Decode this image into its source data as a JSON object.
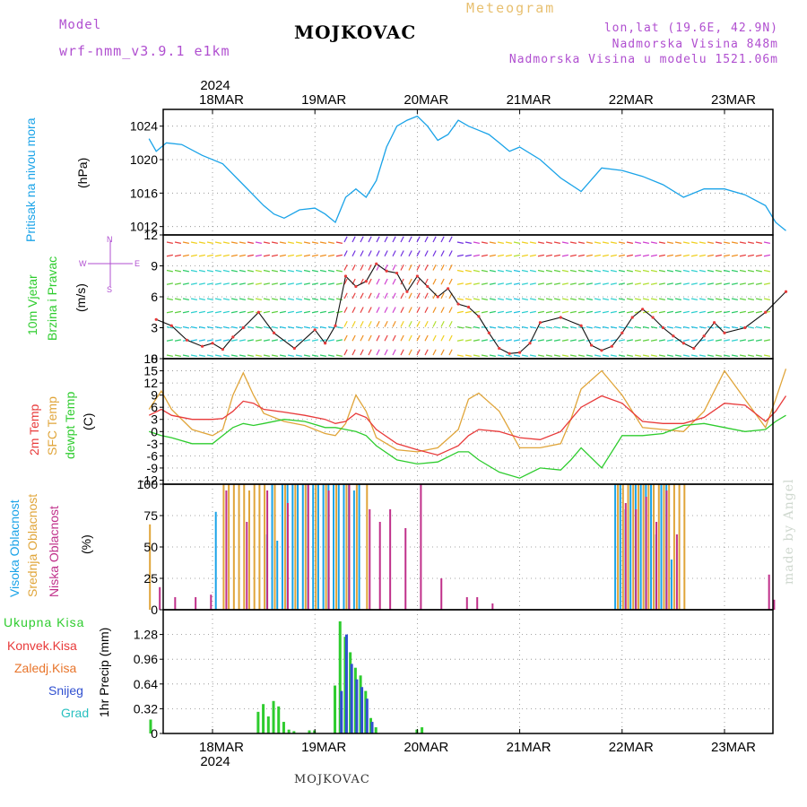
{
  "header": {
    "model_label": "Model",
    "model_name": "wrf-nmm_v3.9.1 e1km",
    "title": "MOJKOVAC",
    "meteogram": "Meteogram",
    "lonlat": "lon,lat (19.6E, 42.9N)",
    "elev": "Nadmorska Visina 848m",
    "elev_model": "Nadmorska Visina u modelu 1521.06m",
    "year_top": "2024"
  },
  "footer": {
    "station": "MOJKOVAC",
    "year_bottom": "2024",
    "watermark": "made by Angel"
  },
  "colors": {
    "pressure": "#1aa3e8",
    "t2m": "#e83a3a",
    "sfc": "#e0a53a",
    "dew": "#2ecc2e",
    "low": "#c0308a",
    "mid": "#e0a53a",
    "high": "#1aa3e8",
    "precip_total": "#2ecc2e",
    "precip_snow": "#3050d0"
  },
  "axis_labels": {
    "pressure": [
      "Pritisak na nivou mora",
      "(hPa)"
    ],
    "wind": [
      "10m Vjetar",
      "Brzina i Pravac",
      "(m/s)"
    ],
    "temp": [
      "2m Temp",
      "SFC Temp",
      "dewpt Temp",
      "(C)"
    ],
    "cloud": [
      "Visoka Oblacnost",
      "Srednja Oblacnost",
      "Niska Oblacnost",
      "(%)"
    ],
    "precip_unit": "1hr Precip (mm)",
    "compass": [
      "N",
      "S",
      "W",
      "E"
    ]
  },
  "precip_legend": [
    "Ukupna Kisa",
    "Konvek.Kisa",
    "Zaledj.Kisa",
    "Snijeg",
    "Grad"
  ],
  "chart_data": [
    {
      "type": "line",
      "title": "",
      "ylabel": "Pritisak na nivou mora (hPa)",
      "x_ticks": [
        "18MAR",
        "19MAR",
        "20MAR",
        "21MAR",
        "22MAR",
        "23MAR"
      ],
      "ylim": [
        1011,
        1026
      ],
      "y_ticks": [
        "1012",
        "1016",
        "1020",
        "1024"
      ],
      "series": [
        {
          "name": "Pritisak na nivou mora",
          "x": [
            -0.62,
            -0.55,
            -0.45,
            -0.3,
            -0.1,
            0.1,
            0.3,
            0.5,
            0.6,
            0.7,
            0.85,
            1.0,
            1.1,
            1.2,
            1.3,
            1.4,
            1.5,
            1.6,
            1.7,
            1.8,
            1.9,
            2.0,
            2.1,
            2.2,
            2.3,
            2.4,
            2.5,
            2.6,
            2.7,
            2.8,
            2.9,
            3.0,
            3.2,
            3.4,
            3.6,
            3.8,
            4.0,
            4.2,
            4.4,
            4.6,
            4.8,
            5.0,
            5.2,
            5.4,
            5.5,
            5.6
          ],
          "values": [
            1022.5,
            1021.0,
            1022.0,
            1021.8,
            1020.5,
            1019.5,
            1017.0,
            1014.5,
            1013.5,
            1013.0,
            1014.0,
            1014.2,
            1013.5,
            1012.5,
            1015.5,
            1016.5,
            1015.5,
            1017.5,
            1021.5,
            1024.0,
            1024.7,
            1025.2,
            1024.0,
            1022.3,
            1023.0,
            1024.7,
            1024.0,
            1023.5,
            1023.0,
            1022.0,
            1021.0,
            1021.5,
            1020.0,
            1017.8,
            1016.2,
            1019.0,
            1018.7,
            1018.0,
            1017.0,
            1015.5,
            1016.5,
            1016.5,
            1015.8,
            1014.5,
            1012.5,
            1011.5
          ]
        }
      ]
    },
    {
      "type": "line",
      "title": "",
      "ylabel": "10m Vjetar Brzina i Pravac (m/s)",
      "ylim": [
        0,
        12
      ],
      "y_ticks": [
        "0",
        "3",
        "6",
        "9",
        "12"
      ],
      "series": [
        {
          "name": "10m Vjetar",
          "x": [
            -0.55,
            -0.4,
            -0.25,
            -0.1,
            0.0,
            0.1,
            0.2,
            0.3,
            0.45,
            0.6,
            0.8,
            1.0,
            1.1,
            1.2,
            1.3,
            1.4,
            1.5,
            1.6,
            1.7,
            1.8,
            1.9,
            2.0,
            2.1,
            2.2,
            2.3,
            2.4,
            2.5,
            2.6,
            2.7,
            2.8,
            2.9,
            3.0,
            3.1,
            3.2,
            3.4,
            3.6,
            3.7,
            3.8,
            3.9,
            4.0,
            4.1,
            4.2,
            4.3,
            4.4,
            4.5,
            4.6,
            4.7,
            4.8,
            4.9,
            5.0,
            5.2,
            5.4,
            5.6
          ],
          "values": [
            3.8,
            3.2,
            1.8,
            1.2,
            1.5,
            0.9,
            2.1,
            3.0,
            4.5,
            2.5,
            1.0,
            2.8,
            1.5,
            3.2,
            8.0,
            7.0,
            7.5,
            9.2,
            8.5,
            8.3,
            6.5,
            8.0,
            7.0,
            6.0,
            6.8,
            5.3,
            5.0,
            4.1,
            2.5,
            1.0,
            0.5,
            0.6,
            1.5,
            3.5,
            4.0,
            3.2,
            1.3,
            0.8,
            1.2,
            2.5,
            4.0,
            4.8,
            4.0,
            3.0,
            2.2,
            1.5,
            1.0,
            2.2,
            3.5,
            2.5,
            3.0,
            4.5,
            6.5
          ]
        }
      ]
    },
    {
      "type": "line",
      "title": "",
      "ylabel": "Temp (C)",
      "ylim": [
        -13,
        18
      ],
      "y_ticks": [
        "-12",
        "-9",
        "-6",
        "-3",
        "0",
        "3",
        "6",
        "9",
        "12",
        "15",
        "18"
      ],
      "series": [
        {
          "name": "2m Temp",
          "x": [
            -0.62,
            -0.5,
            -0.4,
            -0.2,
            0.0,
            0.1,
            0.2,
            0.3,
            0.4,
            0.5,
            0.7,
            0.9,
            1.1,
            1.2,
            1.3,
            1.4,
            1.5,
            1.6,
            1.8,
            2.0,
            2.2,
            2.4,
            2.5,
            2.6,
            2.8,
            3.0,
            3.2,
            3.4,
            3.5,
            3.6,
            3.8,
            4.0,
            4.2,
            4.4,
            4.6,
            4.8,
            5.0,
            5.2,
            5.4,
            5.5,
            5.6
          ],
          "values": [
            4.0,
            5.5,
            4.0,
            3.0,
            3.0,
            3.2,
            5.0,
            7.5,
            7.0,
            5.5,
            4.8,
            4.0,
            3.0,
            2.0,
            2.5,
            4.5,
            3.5,
            0.5,
            -3.0,
            -4.5,
            -5.8,
            -3.5,
            -1.0,
            0.5,
            0.0,
            -1.5,
            -2.0,
            0.0,
            3.0,
            6.0,
            8.8,
            7.0,
            2.5,
            2.0,
            2.0,
            3.5,
            7.0,
            6.5,
            2.5,
            5.0,
            8.8
          ]
        },
        {
          "name": "SFC Temp",
          "x": [
            -0.62,
            -0.5,
            -0.4,
            -0.2,
            0.0,
            0.1,
            0.2,
            0.3,
            0.4,
            0.5,
            0.7,
            0.9,
            1.1,
            1.2,
            1.3,
            1.4,
            1.5,
            1.6,
            1.8,
            2.0,
            2.2,
            2.4,
            2.5,
            2.6,
            2.8,
            3.0,
            3.2,
            3.4,
            3.5,
            3.6,
            3.8,
            4.0,
            4.2,
            4.4,
            4.6,
            4.8,
            5.0,
            5.2,
            5.4,
            5.5,
            5.6
          ],
          "values": [
            5.5,
            10.0,
            5.5,
            0.5,
            -1.0,
            0.5,
            9.0,
            14.5,
            9.0,
            4.5,
            2.5,
            1.5,
            -0.5,
            -1.0,
            2.0,
            9.0,
            5.0,
            -1.5,
            -4.5,
            -5.0,
            -4.0,
            0.5,
            8.0,
            9.5,
            5.0,
            -4.0,
            -4.0,
            -3.0,
            3.0,
            10.5,
            15.0,
            9.0,
            1.0,
            0.5,
            0.0,
            5.0,
            15.0,
            8.0,
            1.0,
            8.0,
            15.5
          ]
        },
        {
          "name": "dewpt Temp",
          "x": [
            -0.62,
            -0.5,
            -0.4,
            -0.2,
            0.0,
            0.1,
            0.2,
            0.3,
            0.4,
            0.5,
            0.7,
            0.9,
            1.1,
            1.2,
            1.3,
            1.4,
            1.5,
            1.6,
            1.8,
            2.0,
            2.2,
            2.4,
            2.5,
            2.6,
            2.8,
            3.0,
            3.2,
            3.4,
            3.5,
            3.6,
            3.8,
            4.0,
            4.2,
            4.4,
            4.6,
            4.8,
            5.0,
            5.2,
            5.4,
            5.5,
            5.6
          ],
          "values": [
            0.0,
            -1.0,
            -1.5,
            -3.0,
            -3.0,
            -1.0,
            1.0,
            2.0,
            1.5,
            2.0,
            3.0,
            2.5,
            1.0,
            1.0,
            0.5,
            0.0,
            -1.0,
            -3.5,
            -7.0,
            -8.0,
            -7.5,
            -5.0,
            -5.0,
            -7.0,
            -10.0,
            -11.5,
            -9.0,
            -9.5,
            -7.0,
            -4.0,
            -9.0,
            -1.0,
            -1.0,
            -0.5,
            1.5,
            2.0,
            1.0,
            0.0,
            0.5,
            2.5,
            4.0
          ]
        }
      ]
    },
    {
      "type": "bar",
      "title": "",
      "ylabel": "Oblacnost (%)",
      "ylim": [
        0,
        100
      ],
      "y_ticks": [
        "0",
        "25",
        "50",
        "75",
        "100"
      ],
      "series": [
        {
          "name": "Visoka Oblacnost",
          "x": [
            0.05,
            0.55,
            0.6,
            0.65,
            0.7,
            0.75,
            0.8,
            0.85,
            0.9,
            0.95,
            1.0,
            1.05,
            1.1,
            1.15,
            1.2,
            1.25,
            1.3,
            1.35,
            1.4,
            1.45,
            3.95,
            4.0,
            4.05,
            4.1,
            4.15,
            4.2,
            4.25,
            4.3,
            4.35,
            4.4,
            4.45,
            4.5
          ],
          "values": [
            78,
            60,
            100,
            55,
            100,
            100,
            100,
            100,
            100,
            100,
            100,
            100,
            100,
            100,
            100,
            100,
            100,
            100,
            95,
            100,
            100,
            100,
            80,
            100,
            100,
            100,
            100,
            100,
            60,
            100,
            100,
            40
          ]
        },
        {
          "name": "Srednja Oblacnost",
          "x": [
            -0.62,
            0.1,
            0.15,
            0.2,
            0.25,
            0.3,
            0.35,
            0.4,
            0.45,
            0.5,
            0.6,
            0.7,
            0.8,
            0.9,
            1.0,
            1.1,
            1.2,
            1.3,
            1.4,
            1.5,
            3.95,
            4.0,
            4.05,
            4.1,
            4.15,
            4.2,
            4.25,
            4.3,
            4.35,
            4.4,
            4.45,
            4.5,
            4.55,
            4.6
          ],
          "values": [
            68,
            100,
            100,
            100,
            100,
            100,
            95,
            100,
            100,
            100,
            100,
            100,
            100,
            100,
            100,
            100,
            100,
            100,
            100,
            100,
            100,
            100,
            100,
            100,
            100,
            100,
            100,
            100,
            100,
            100,
            100,
            100,
            100,
            100
          ]
        },
        {
          "name": "Niska Oblacnost",
          "x": [
            -0.55,
            -0.4,
            -0.2,
            -0.05,
            0.1,
            0.3,
            0.5,
            0.7,
            0.9,
            1.1,
            1.3,
            1.5,
            1.6,
            1.7,
            1.85,
            2.0,
            2.2,
            2.45,
            2.55,
            2.7,
            4.0,
            4.1,
            4.2,
            4.3,
            4.4,
            4.5,
            5.4,
            5.45
          ],
          "values": [
            18,
            10,
            10,
            12,
            95,
            70,
            95,
            85,
            100,
            95,
            100,
            80,
            70,
            80,
            65,
            100,
            25,
            10,
            10,
            5,
            85,
            80,
            90,
            70,
            95,
            60,
            28,
            8
          ]
        }
      ]
    },
    {
      "type": "bar",
      "title": "",
      "ylabel": "1hr Precip (mm)",
      "ylim": [
        0,
        1.6
      ],
      "y_ticks": [
        "0",
        "0.32",
        "0.64",
        "0.96",
        "1.28"
      ],
      "series": [
        {
          "name": "Ukupna Kisa",
          "x": [
            -0.6,
            0.45,
            0.5,
            0.55,
            0.6,
            0.65,
            0.7,
            0.75,
            0.8,
            0.95,
            1.0,
            1.2,
            1.25,
            1.3,
            1.35,
            1.4,
            1.45,
            1.5,
            1.55,
            1.6,
            2.0,
            2.05
          ],
          "values": [
            0.18,
            0.28,
            0.38,
            0.22,
            0.42,
            0.35,
            0.15,
            0.05,
            0.03,
            0.04,
            0.04,
            0.62,
            1.45,
            1.25,
            1.05,
            0.85,
            0.75,
            0.55,
            0.2,
            0.08,
            0.05,
            0.08
          ]
        },
        {
          "name": "Snijeg",
          "x": [
            1.25,
            1.3,
            1.35,
            1.4,
            1.45,
            1.5,
            1.55
          ],
          "values": [
            0.55,
            1.28,
            0.9,
            0.7,
            0.6,
            0.45,
            0.15
          ]
        }
      ]
    }
  ]
}
